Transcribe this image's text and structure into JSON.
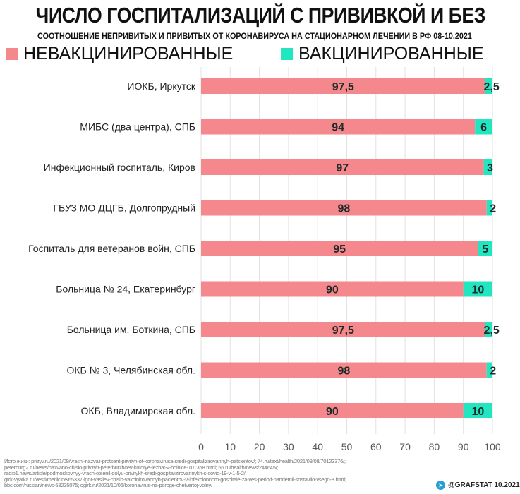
{
  "chart_data": {
    "type": "bar",
    "stacked": true,
    "orientation": "horizontal",
    "title": "ЧИСЛО ГОСПИТАЛИЗАЦИЙ С ПРИВИВКОЙ И БЕЗ",
    "subtitle": "СООТНОШЕНИЕ НЕПРИВИТЫХ И ПРИВИТЫХ ОТ КОРОНАВИРУСА НА СТАЦИОНАРНОМ ЛЕЧЕНИИ В РФ 08-10.2021",
    "categories": [
      "ИОКБ, Иркутск",
      "МИБС (два центра), СПБ",
      "Инфекционный госпиталь, Киров",
      "ГБУЗ МО ДЦГБ, Долгопрудный",
      "Госпиталь для ветеранов войн, СПБ",
      "Больница № 24, Екатеринбург",
      "Больница им. Боткина, СПБ",
      "ОКБ № 3, Челябинская обл.",
      "ОКБ, Владимирская обл."
    ],
    "series": [
      {
        "name": "НЕВАКЦИНИРОВАННЫЕ",
        "color": "#f4888c",
        "values": [
          97.5,
          94,
          97,
          98,
          95,
          90,
          97.5,
          98,
          90
        ],
        "labels": [
          "97,5",
          "94",
          "97",
          "98",
          "95",
          "90",
          "97,5",
          "98",
          "90"
        ]
      },
      {
        "name": "ВАКЦИНИРОВАННЫЕ",
        "color": "#22e6bf",
        "values": [
          2.5,
          6,
          3,
          2,
          5,
          10,
          2.5,
          2,
          10
        ],
        "labels": [
          "2,5",
          "6",
          "3",
          "2",
          "5",
          "10",
          "2,5",
          "2",
          "10"
        ]
      }
    ],
    "xlim": [
      0,
      100
    ],
    "xticks": [
      "0",
      "10",
      "20",
      "30",
      "40",
      "50",
      "60",
      "70",
      "80",
      "90",
      "100"
    ],
    "grid": true,
    "legend": "top"
  },
  "sources": [
    "Источники: prizyv.ru/2021/09/vrachi-nazvali-protsent-privityh-ot-koronavirusa-sredi-gospitalizirovannyh-patsientov/; 74.ru/text/health/2021/09/08/70123376/;",
    "peterburg2.ru/news/nazvano-chislo-privityh-peterburzhcev-kotorye-lezhat-v-bolnice-101358.html; 66.ru/health/news/244645/;",
    "radio1.news/article/podmoskovnyy-vrach-otsenil-dolyu-privitykh-sredi-gospitalizirovannykh-s-covid-19-v-1-5-2/;",
    "gtrk-vyatka.ru/vesti/medicine/65337-igor-vasilev-chislo-vakcinirovannyh-pacientov-v-infekcionnom-gospitale-za-ves-period-pandemii-sostavilo-vsego-3.html;",
    "bbc.com/russian/news-58235075; ogirk.ru/2021/10/06/koronavirus-na-poroge-chetvertoj-volny/"
  ],
  "brand": "@GRAFSTAT 10.2021",
  "icons": {
    "brand": "telegram-icon"
  }
}
